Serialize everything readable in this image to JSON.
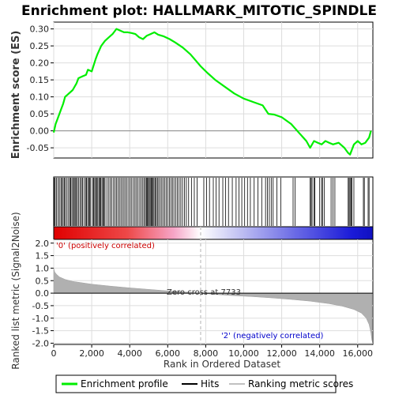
{
  "chart_data": {
    "type": "line",
    "title": "Enrichment plot: HALLMARK_MITOTIC_SPINDLE",
    "xlabel": "Rank in Ordered Dataset",
    "ylabel_top": "Enrichment score (ES)",
    "ylabel_bottom": "Ranked list metric (Signal2Noise)",
    "xlim": [
      0,
      16800
    ],
    "es_ylim": [
      -0.08,
      0.32
    ],
    "metric_ylim": [
      -2.05,
      2.15
    ],
    "x_ticks": [
      0,
      2000,
      4000,
      6000,
      8000,
      10000,
      12000,
      14000,
      16000
    ],
    "x_tick_labels": [
      "0",
      "2,000",
      "4,000",
      "6,000",
      "8,000",
      "10,000",
      "12,000",
      "14,000",
      "16,000"
    ],
    "es_ticks": [
      -0.05,
      0.0,
      0.05,
      0.1,
      0.15,
      0.2,
      0.25,
      0.3
    ],
    "es_tick_labels": [
      "-0.05",
      "0.00",
      "0.05",
      "0.10",
      "0.15",
      "0.20",
      "0.25",
      "0.30"
    ],
    "metric_ticks": [
      -2.0,
      -1.5,
      -1.0,
      -0.5,
      0.0,
      0.5,
      1.0,
      1.5,
      2.0
    ],
    "metric_tick_labels": [
      "-2.0",
      "-1.5",
      "-1.0",
      "-0.5",
      "0.0",
      "0.5",
      "1.0",
      "1.5",
      "2.0"
    ],
    "grid": true,
    "legend_position": "bottom",
    "series": [
      {
        "name": "Enrichment profile",
        "color": "#00ee00",
        "x": [
          0,
          100,
          200,
          300,
          400,
          500,
          600,
          700,
          800,
          1000,
          1200,
          1300,
          1500,
          1700,
          1800,
          2000,
          2200,
          2300,
          2500,
          2700,
          2900,
          3100,
          3300,
          3500,
          3700,
          3900,
          4100,
          4300,
          4500,
          4700,
          4900,
          5100,
          5300,
          5500,
          5800,
          6100,
          6400,
          6800,
          7200,
          7733,
          8100,
          8500,
          9000,
          9500,
          10000,
          10500,
          11000,
          11300,
          11600,
          12000,
          12500,
          12900,
          13300,
          13500,
          13700,
          13900,
          14100,
          14300,
          14500,
          14700,
          15000,
          15300,
          15500,
          15600,
          15800,
          16000,
          16200,
          16400,
          16600,
          16700
        ],
        "y": [
          -0.005,
          0.02,
          0.035,
          0.05,
          0.065,
          0.08,
          0.1,
          0.105,
          0.11,
          0.12,
          0.14,
          0.155,
          0.16,
          0.165,
          0.18,
          0.175,
          0.21,
          0.225,
          0.25,
          0.265,
          0.275,
          0.285,
          0.3,
          0.295,
          0.29,
          0.29,
          0.288,
          0.285,
          0.275,
          0.27,
          0.28,
          0.285,
          0.29,
          0.283,
          0.278,
          0.27,
          0.26,
          0.245,
          0.225,
          0.19,
          0.17,
          0.15,
          0.13,
          0.11,
          0.095,
          0.085,
          0.075,
          0.05,
          0.048,
          0.04,
          0.02,
          -0.005,
          -0.03,
          -0.05,
          -0.03,
          -0.035,
          -0.04,
          -0.03,
          -0.035,
          -0.04,
          -0.035,
          -0.05,
          -0.065,
          -0.07,
          -0.04,
          -0.03,
          -0.04,
          -0.035,
          -0.02,
          0.0
        ]
      }
    ],
    "hits_label": "Hits",
    "hits": [
      30,
      80,
      150,
      230,
      300,
      380,
      430,
      500,
      560,
      620,
      700,
      780,
      850,
      900,
      960,
      1030,
      1080,
      1130,
      1190,
      1250,
      1320,
      1400,
      1460,
      1520,
      1600,
      1680,
      1730,
      1790,
      1850,
      1900,
      1950,
      2050,
      2100,
      2160,
      2210,
      2260,
      2320,
      2380,
      2430,
      2480,
      2540,
      2600,
      2650,
      2700,
      2800,
      2900,
      2980,
      3060,
      3150,
      3230,
      3300,
      3380,
      3460,
      3540,
      3620,
      3700,
      3780,
      3860,
      3950,
      4030,
      4110,
      4200,
      4280,
      4360,
      4440,
      4530,
      4610,
      4690,
      4760,
      4830,
      4880,
      4930,
      4980,
      5030,
      5080,
      5130,
      5180,
      5230,
      5280,
      5340,
      5400,
      5460,
      5530,
      5610,
      5690,
      5770,
      5850,
      5930,
      6010,
      6090,
      6170,
      6250,
      6330,
      6420,
      6510,
      6600,
      6690,
      6780,
      6880,
      6980,
      7100,
      7250,
      7400,
      7550,
      7900,
      8050,
      8200,
      8400,
      8550,
      8700,
      8900,
      9050,
      9200,
      9400,
      9600,
      9750,
      9900,
      10050,
      10200,
      10350,
      10550,
      10750,
      10950,
      11150,
      11250,
      11350,
      11450,
      11550,
      11750,
      11950,
      12600,
      12700,
      13500,
      13550,
      13600,
      13700,
      13750,
      14000,
      14100,
      14150,
      14250,
      14600,
      14700,
      14800,
      15500,
      15550,
      15600,
      15650,
      15700,
      15800,
      16300,
      16350,
      16550,
      16600
    ],
    "metric_series_name": "Ranking metric scores",
    "metric_curve": {
      "x": [
        0,
        50,
        150,
        300,
        600,
        1000,
        2000,
        3000,
        4000,
        5000,
        6000,
        7000,
        7733,
        8500,
        9500,
        10500,
        11500,
        12500,
        13500,
        14500,
        15200,
        15800,
        16200,
        16450,
        16600,
        16700,
        16750
      ],
      "y": [
        1.0,
        0.85,
        0.75,
        0.65,
        0.55,
        0.47,
        0.36,
        0.28,
        0.21,
        0.15,
        0.09,
        0.04,
        0.0,
        -0.05,
        -0.1,
        -0.14,
        -0.19,
        -0.25,
        -0.32,
        -0.42,
        -0.52,
        -0.65,
        -0.8,
        -1.0,
        -1.25,
        -1.6,
        -1.9
      ]
    },
    "zero_cross_label": "Zero cross at 7733",
    "zero_cross_value": 7733,
    "pos_corr_label": "'0' (positively correlated)",
    "neg_corr_label": "'2' (negatively correlated)",
    "colors": {
      "profile": "#00ee00",
      "hits": "#000000",
      "metric_fill": "#b0b0b0",
      "pos_label": "#cc0000",
      "neg_label": "#0000cc",
      "zero_line": "#000000",
      "grid": "#dddddd",
      "cross_line": "#cccccc"
    }
  }
}
